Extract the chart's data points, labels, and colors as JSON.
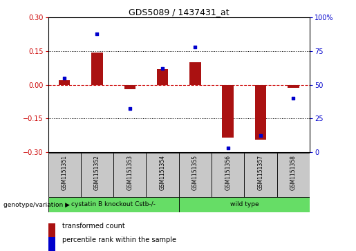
{
  "title": "GDS5089 / 1437431_at",
  "samples": [
    "GSM1151351",
    "GSM1151352",
    "GSM1151353",
    "GSM1151354",
    "GSM1151355",
    "GSM1151356",
    "GSM1151357",
    "GSM1151358"
  ],
  "transformed_count": [
    0.02,
    0.145,
    -0.02,
    0.07,
    0.1,
    -0.235,
    -0.245,
    -0.015
  ],
  "percentile_rank": [
    55,
    88,
    32,
    62,
    78,
    3,
    12,
    40
  ],
  "ylim_left": [
    -0.3,
    0.3
  ],
  "ylim_right": [
    0,
    100
  ],
  "yticks_left": [
    -0.3,
    -0.15,
    0.0,
    0.15,
    0.3
  ],
  "yticks_right": [
    0,
    25,
    50,
    75,
    100
  ],
  "bar_color": "#AA1111",
  "dot_color": "#0000CC",
  "hline_color": "#CC0000",
  "grid_color": "#000000",
  "background_color": "#ffffff",
  "legend_bar_label": "transformed count",
  "legend_dot_label": "percentile rank within the sample",
  "genotype_label": "genotype/variation",
  "group1_label": "cystatin B knockout Cstb-/-",
  "group2_label": "wild type",
  "group1_color": "#66DD66",
  "group2_color": "#66DD66",
  "sample_box_color": "#C8C8C8",
  "bar_width": 0.35
}
